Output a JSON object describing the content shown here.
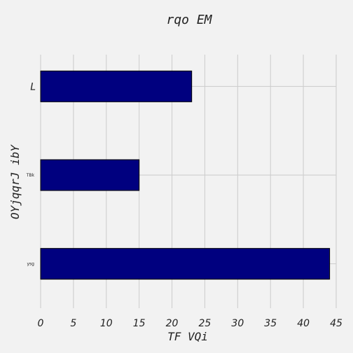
{
  "chart_data": {
    "type": "bar",
    "orientation": "horizontal",
    "title": "rqo EM",
    "xlabel": "TF VQi",
    "ylabel": "OYjqqrJ ibY",
    "categories": [
      "L",
      "TBk",
      "ysg"
    ],
    "values": [
      23,
      15,
      44
    ],
    "xlim": [
      0,
      45
    ],
    "xticks": [
      "0",
      "5",
      "10",
      "15",
      "20",
      "25",
      "30",
      "35",
      "40",
      "45"
    ],
    "bar_color": "#00007f",
    "bar_edge_color": "#000000",
    "grid": true,
    "grid_color": "#cbcbcb",
    "background": "#f2f2f2"
  }
}
